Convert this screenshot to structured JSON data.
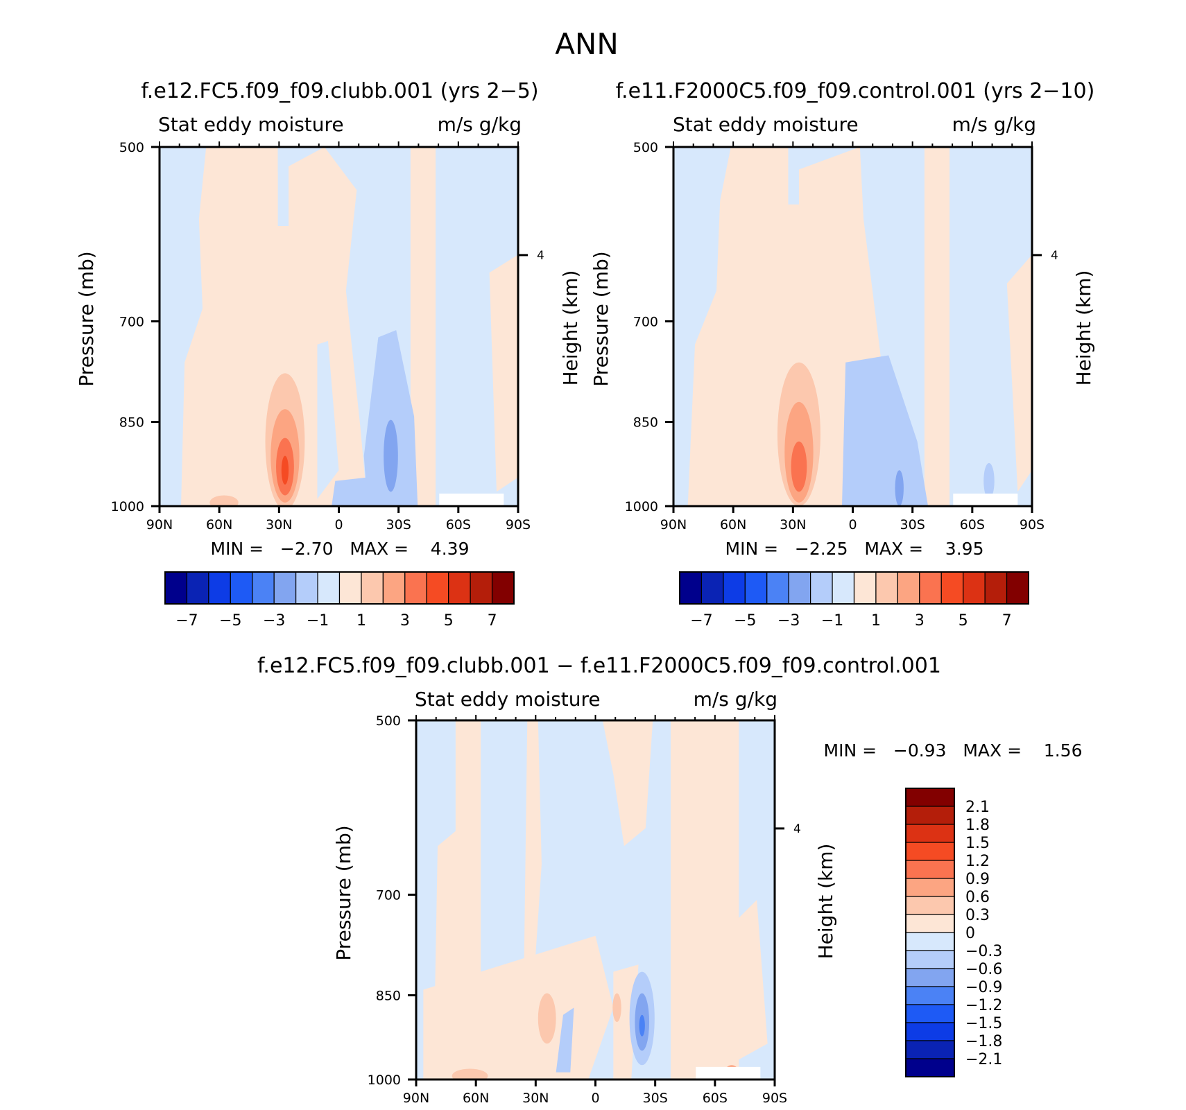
{
  "figure": {
    "title": "ANN"
  },
  "palettes": {
    "full": [
      "#00008c",
      "#0a23b4",
      "#0d3ce6",
      "#1e5af5",
      "#4b82f5",
      "#82a5f0",
      "#b4cdfa",
      "#d7e8fc",
      "#fde6d6",
      "#fcc8ae",
      "#fca582",
      "#fa7350",
      "#f54b23",
      "#dc3214",
      "#b41e0a",
      "#820000"
    ],
    "diff_center_blue": "#d7e8fc",
    "diff_center_warm": "#fde6d6"
  },
  "chart_data": [
    {
      "type": "heatmap",
      "id": "clubb",
      "title": "f.e12.FC5.f09_f09.clubb.001 (yrs 2−5)",
      "left_label": "Stat eddy moisture",
      "right_label": "m/s g/kg",
      "ylabel": "Pressure (mb)",
      "ylabel_right": "Height (km)",
      "right_ticks": [
        "4"
      ],
      "x_ticks": [
        "90N",
        "60N",
        "30N",
        "0",
        "30S",
        "60S",
        "90S"
      ],
      "y_ticks": [
        "500",
        "700",
        "850",
        "1000"
      ],
      "ylim": [
        500,
        1000
      ],
      "min_max_text": "MIN =   −2.70   MAX =    4.39",
      "stats": {
        "min": -2.7,
        "max": 4.39
      },
      "colorbar": {
        "orientation": "horizontal",
        "levels": [
          -7,
          -6,
          -5,
          -4,
          -3,
          -2,
          -1,
          0,
          1,
          2,
          3,
          4,
          5,
          6,
          7
        ],
        "labels": [
          "−7",
          "−5",
          "−3",
          "−1",
          "1",
          "3",
          "5",
          "7"
        ]
      }
    },
    {
      "type": "heatmap",
      "id": "control",
      "title": "f.e11.F2000C5.f09_f09.control.001 (yrs 2−10)",
      "left_label": "Stat eddy moisture",
      "right_label": "m/s g/kg",
      "ylabel": "Pressure (mb)",
      "ylabel_right": "Height (km)",
      "right_ticks": [
        "4"
      ],
      "x_ticks": [
        "90N",
        "60N",
        "30N",
        "0",
        "30S",
        "60S",
        "90S"
      ],
      "y_ticks": [
        "500",
        "700",
        "850",
        "1000"
      ],
      "ylim": [
        500,
        1000
      ],
      "min_max_text": "MIN =   −2.25   MAX =    3.95",
      "stats": {
        "min": -2.25,
        "max": 3.95
      },
      "colorbar": {
        "orientation": "horizontal",
        "levels": [
          -7,
          -6,
          -5,
          -4,
          -3,
          -2,
          -1,
          0,
          1,
          2,
          3,
          4,
          5,
          6,
          7
        ],
        "labels": [
          "−7",
          "−5",
          "−3",
          "−1",
          "1",
          "3",
          "5",
          "7"
        ]
      }
    },
    {
      "type": "heatmap",
      "id": "diff",
      "title": "f.e12.FC5.f09_f09.clubb.001 − f.e11.F2000C5.f09_f09.control.001",
      "left_label": "Stat eddy moisture",
      "right_label": "m/s g/kg",
      "ylabel": "Pressure (mb)",
      "ylabel_right": "Height (km)",
      "right_ticks": [
        "4"
      ],
      "x_ticks": [
        "90N",
        "60N",
        "30N",
        "0",
        "30S",
        "60S",
        "90S"
      ],
      "y_ticks": [
        "500",
        "700",
        "850",
        "1000"
      ],
      "ylim": [
        500,
        1000
      ],
      "min_max_text": "MIN =   −0.93   MAX =    1.56",
      "stats": {
        "min": -0.93,
        "max": 1.56
      },
      "colorbar": {
        "orientation": "vertical",
        "levels": [
          2.1,
          1.8,
          1.5,
          1.2,
          0.9,
          0.6,
          0.3,
          0,
          -0.3,
          -0.6,
          -0.9,
          -1.2,
          -1.5,
          -1.8,
          -2.1
        ],
        "labels": [
          "2.1",
          "1.8",
          "1.5",
          "1.2",
          "0.9",
          "0.6",
          "0.3",
          "0",
          "−0.3",
          "−0.6",
          "−0.9",
          "−1.2",
          "−1.5",
          "−1.8",
          "−2.1"
        ]
      }
    }
  ]
}
